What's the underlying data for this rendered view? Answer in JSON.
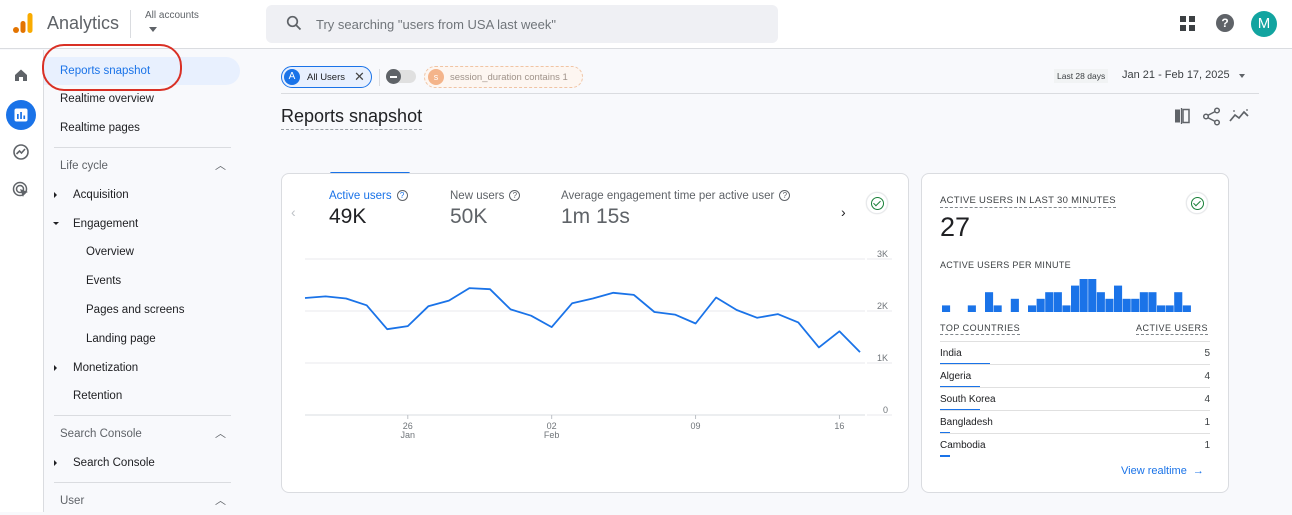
{
  "header": {
    "app_title": "Analytics",
    "account_label": "All accounts",
    "search_placeholder": "Try searching \"users from USA last week\"",
    "avatar_initial": "M",
    "help_glyph": "?"
  },
  "rail": {
    "items": [
      {
        "icon": "home-icon",
        "active": false
      },
      {
        "icon": "reports-icon",
        "active": true
      },
      {
        "icon": "explore-icon",
        "active": false
      },
      {
        "icon": "advertising-icon",
        "active": false
      }
    ]
  },
  "nav": {
    "items": [
      {
        "label": "Reports snapshot",
        "active": true
      },
      {
        "label": "Realtime overview"
      },
      {
        "label": "Realtime pages"
      }
    ],
    "lifecycle": {
      "title": "Life cycle",
      "acquisition": "Acquisition",
      "engagement": "Engagement",
      "engagement_children": [
        "Overview",
        "Events",
        "Pages and screens",
        "Landing page"
      ],
      "monetization": "Monetization",
      "retention": "Retention"
    },
    "search_console": {
      "title": "Search Console",
      "item": "Search Console"
    },
    "user": {
      "title": "User"
    }
  },
  "filters": {
    "all_users": {
      "badge": "A",
      "label": "All Users",
      "remove": "✕"
    },
    "segment": {
      "badge": "s",
      "label": "session_duration contains 1"
    },
    "date_pill": "Last 28 days",
    "date_range": "Jan 21 - Feb 17, 2025"
  },
  "page": {
    "title": "Reports snapshot"
  },
  "metrics": [
    {
      "label": "Active users",
      "value": "49K",
      "active": true
    },
    {
      "label": "New users",
      "value": "50K",
      "active": false
    },
    {
      "label": "Average engagement time per active user",
      "value": "1m 15s",
      "active": false
    }
  ],
  "realtime": {
    "title": "ACTIVE USERS IN LAST 30 MINUTES",
    "value": "27",
    "per_minute_label": "ACTIVE USERS PER MINUTE",
    "col_country": "TOP COUNTRIES",
    "col_users": "ACTIVE USERS",
    "countries": [
      {
        "name": "India",
        "value": "5"
      },
      {
        "name": "Algeria",
        "value": "4"
      },
      {
        "name": "South Korea",
        "value": "4"
      },
      {
        "name": "Bangladesh",
        "value": "1"
      },
      {
        "name": "Cambodia",
        "value": "1"
      }
    ],
    "view_link": "View realtime",
    "view_arrow": "→"
  },
  "colors": {
    "accent": "#1a73e8",
    "success": "#188038",
    "avatar": "#12a4a0",
    "highlight_ring": "#d93025"
  },
  "chart_data": [
    {
      "type": "line",
      "title": "Active users",
      "x": [
        "Jan 21",
        "Jan 22",
        "Jan 23",
        "Jan 24",
        "Jan 25",
        "Jan 26",
        "Jan 27",
        "Jan 28",
        "Jan 29",
        "Jan 30",
        "Jan 31",
        "Feb 01",
        "Feb 02",
        "Feb 03",
        "Feb 04",
        "Feb 05",
        "Feb 06",
        "Feb 07",
        "Feb 08",
        "Feb 09",
        "Feb 10",
        "Feb 11",
        "Feb 12",
        "Feb 13",
        "Feb 14",
        "Feb 15",
        "Feb 16",
        "Feb 17"
      ],
      "series": [
        {
          "name": "Active users",
          "values": [
            2250,
            2280,
            2240,
            2110,
            1650,
            1710,
            2090,
            2200,
            2440,
            2420,
            2030,
            1910,
            1690,
            2150,
            2240,
            2350,
            2310,
            1980,
            1930,
            1760,
            2260,
            2020,
            1870,
            1940,
            1780,
            1300,
            1610,
            1210
          ]
        }
      ],
      "x_tick_labels": [
        {
          "day": "26",
          "month": "Jan"
        },
        {
          "day": "02",
          "month": "Feb"
        },
        {
          "day": "09",
          "month": ""
        },
        {
          "day": "16",
          "month": ""
        }
      ],
      "y_tick_labels": [
        "3K",
        "2K",
        "1K",
        "0"
      ],
      "ylim": [
        0,
        3000
      ],
      "xlabel": "",
      "ylabel": "",
      "grid": true,
      "y_axis_position": "right"
    },
    {
      "type": "bar",
      "title": "ACTIVE USERS PER MINUTE",
      "categories": [
        "-30",
        "-29",
        "-28",
        "-27",
        "-26",
        "-25",
        "-24",
        "-23",
        "-22",
        "-21",
        "-20",
        "-19",
        "-18",
        "-17",
        "-16",
        "-15",
        "-14",
        "-13",
        "-12",
        "-11",
        "-10",
        "-9",
        "-8",
        "-7",
        "-6",
        "-5",
        "-4",
        "-3",
        "-2",
        "-1"
      ],
      "values": [
        1,
        0,
        0,
        1,
        0,
        3,
        1,
        0,
        2,
        0,
        1,
        2,
        3,
        3,
        1,
        4,
        5,
        5,
        3,
        2,
        4,
        2,
        2,
        3,
        3,
        1,
        1,
        3,
        1,
        0
      ],
      "grid": false
    }
  ]
}
